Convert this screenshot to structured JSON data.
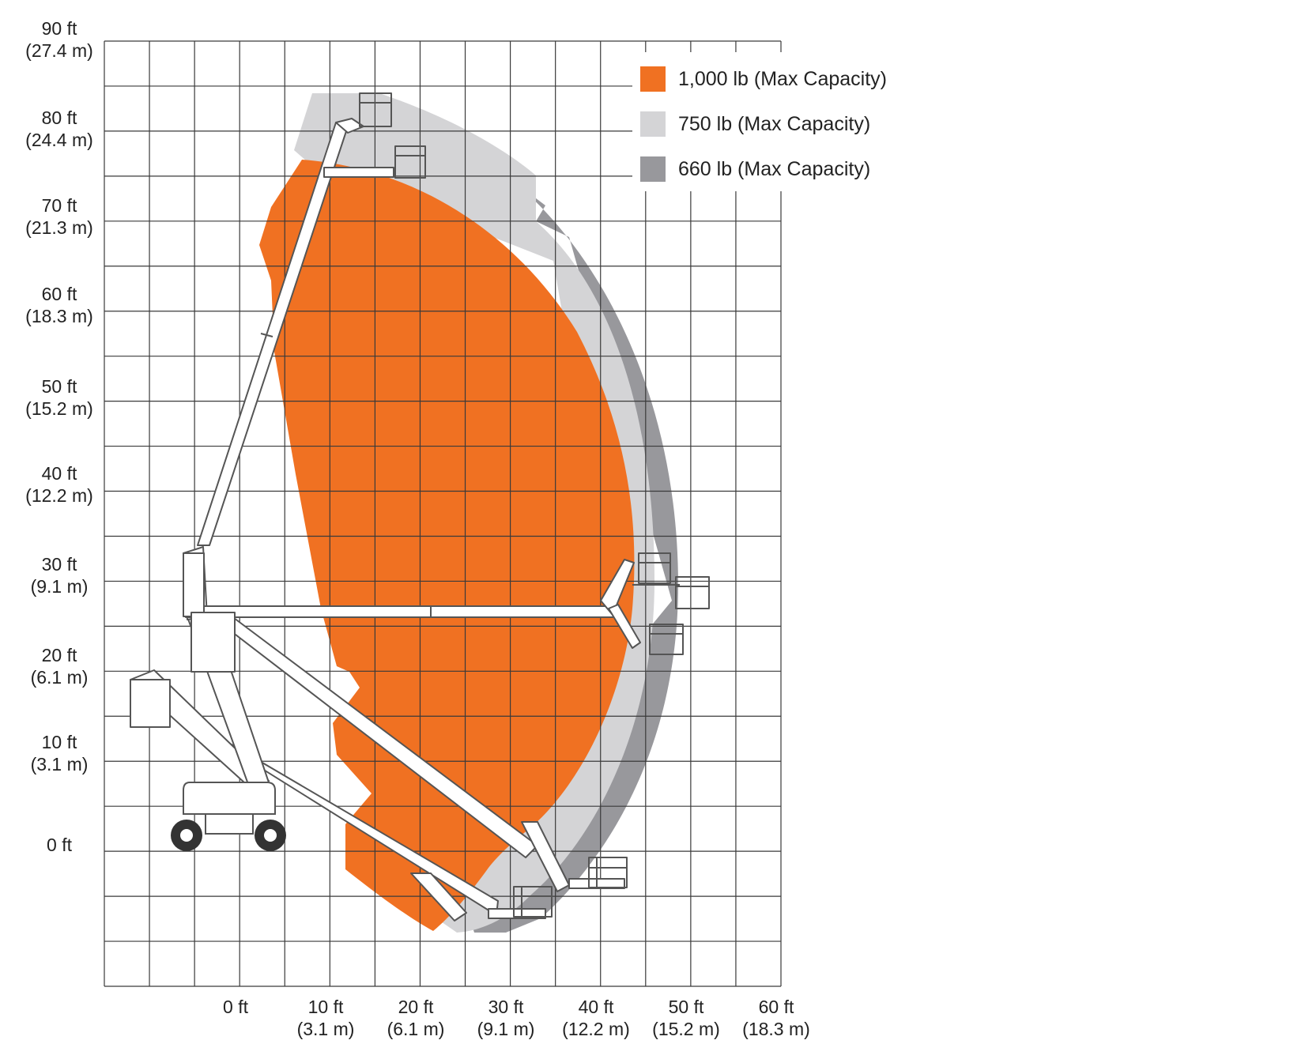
{
  "y_labels": [
    {
      "ft": "90 ft",
      "m": "(27.4 m)"
    },
    {
      "ft": "80 ft",
      "m": "(24.4 m)"
    },
    {
      "ft": "70 ft",
      "m": "(21.3 m)"
    },
    {
      "ft": "60 ft",
      "m": "(18.3 m)"
    },
    {
      "ft": "50 ft",
      "m": "(15.2 m)"
    },
    {
      "ft": "40 ft",
      "m": "(12.2 m)"
    },
    {
      "ft": "30 ft",
      "m": "(9.1 m)"
    },
    {
      "ft": "20 ft",
      "m": "(6.1 m)"
    },
    {
      "ft": "10 ft",
      "m": "(3.1 m)"
    },
    {
      "ft": "0 ft",
      "m": ""
    }
  ],
  "x_labels": [
    {
      "ft": "0 ft",
      "m": ""
    },
    {
      "ft": "10 ft",
      "m": "(3.1 m)"
    },
    {
      "ft": "20 ft",
      "m": "(6.1 m)"
    },
    {
      "ft": "30 ft",
      "m": "(9.1 m)"
    },
    {
      "ft": "40 ft",
      "m": "(12.2 m)"
    },
    {
      "ft": "50 ft",
      "m": "(15.2 m)"
    },
    {
      "ft": "60 ft",
      "m": "(18.3 m)"
    }
  ],
  "legend": [
    {
      "label": "1,000 lb (Max Capacity)",
      "color": "#f07122"
    },
    {
      "label": "750 lb (Max Capacity)",
      "color": "#d4d4d6"
    },
    {
      "label": "660 lb (Max Capacity)",
      "color": "#98989c"
    }
  ],
  "colors": {
    "grid": "#3a3a3a",
    "machine_fill": "#ffffff",
    "machine_stroke": "#555555",
    "wheel": "#333333"
  }
}
